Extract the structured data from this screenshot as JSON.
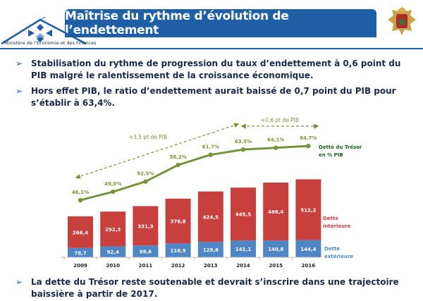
{
  "header": {
    "title": "Maîtrise du rythme d’évolution de l’endettement",
    "ministry": "Ministère de l’Économie et des Finances",
    "emblem_icon": "royal-emblem-icon"
  },
  "bullets": [
    {
      "text": "Stabilisation du rythme de progression du taux d’endettement à 0,6 point du PIB malgré le ralentissement de la croissance économique."
    },
    {
      "text": "Hors effet PIB, le ratio d’endettement aurait baissé de 0,7 point du PIB pour s’établir à 63,4%."
    },
    {
      "text": "La dette du Trésor reste soutenable et devrait s’inscrire dans une trajectoire baissière à partir de 2017."
    }
  ],
  "colors": {
    "brand": "#1f5fa5",
    "interieure": "#c8403e",
    "exterieure": "#4f86c6",
    "line": "#77933c"
  },
  "chart_data": {
    "type": "bar",
    "stacked": true,
    "categories": [
      "2009",
      "2010",
      "2011",
      "2012",
      "2013",
      "2014",
      "2015",
      "2016"
    ],
    "series": [
      {
        "name": "Dette extérieure",
        "values": [
          78.7,
          92.4,
          99.6,
          116.9,
          129.8,
          141.1,
          140.8,
          144.4
        ],
        "labels": [
          "78,7",
          "92,4",
          "99,6",
          "116,9",
          "129,8",
          "141,1",
          "140,8",
          "144,4"
        ]
      },
      {
        "name": "Dette intérieure",
        "values": [
          266.4,
          292.3,
          331.3,
          376.8,
          424.5,
          445.5,
          488.4,
          512.2
        ],
        "labels": [
          "266,4",
          "292,3",
          "331,3",
          "376,8",
          "424,5",
          "445,5",
          "488,4",
          "512,2"
        ]
      }
    ],
    "line": {
      "name": "Dette du Trésor en % PIB",
      "values": [
        46.1,
        49.0,
        52.5,
        58.2,
        61.7,
        63.5,
        64.1,
        64.7
      ],
      "labels": [
        "46,1%",
        "49,0%",
        "52,5%",
        "58,2%",
        "61,7%",
        "63,5%",
        "64,1%",
        "64,7%"
      ]
    },
    "annotations": [
      "+3,5 pt de PIB",
      "+0,6 pt de PIB"
    ],
    "legend": {
      "line": "Dette du Trésor en % PIB",
      "interieure": "Dette intérieure",
      "exterieure": "Dette extérieure"
    }
  }
}
